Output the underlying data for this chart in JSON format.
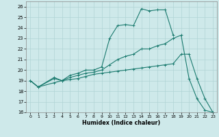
{
  "xlabel": "Humidex (Indice chaleur)",
  "xlim": [
    -0.5,
    23.5
  ],
  "ylim": [
    16,
    26.5
  ],
  "xticks": [
    0,
    1,
    2,
    3,
    4,
    5,
    6,
    7,
    8,
    9,
    10,
    11,
    12,
    13,
    14,
    15,
    16,
    17,
    18,
    19,
    20,
    21,
    22,
    23
  ],
  "yticks": [
    16,
    17,
    18,
    19,
    20,
    21,
    22,
    23,
    24,
    25,
    26
  ],
  "bg_color": "#cee9ea",
  "grid_color": "#b0d4d5",
  "line_color": "#1a7a6e",
  "line1": {
    "x": [
      0,
      1,
      3,
      4,
      5,
      6,
      7,
      8,
      9,
      10,
      11,
      12,
      13,
      14,
      15,
      16,
      17,
      18
    ],
    "y": [
      19.0,
      18.4,
      19.3,
      19.0,
      19.5,
      19.7,
      20.0,
      20.0,
      20.3,
      23.0,
      24.2,
      24.3,
      24.2,
      25.8,
      25.6,
      25.7,
      25.7,
      23.3
    ]
  },
  "line2": {
    "x": [
      0,
      1,
      3,
      4,
      5,
      6,
      7,
      8,
      9,
      10,
      11,
      12,
      13,
      14,
      15,
      16,
      17,
      18,
      19,
      20,
      21,
      22,
      23
    ],
    "y": [
      19.0,
      18.4,
      19.2,
      19.0,
      19.3,
      19.5,
      19.7,
      19.8,
      20.0,
      20.5,
      21.0,
      21.3,
      21.5,
      22.0,
      22.0,
      22.3,
      22.5,
      23.0,
      23.3,
      19.2,
      17.3,
      16.2,
      16.0
    ]
  },
  "line3": {
    "x": [
      0,
      1,
      3,
      4,
      5,
      6,
      7,
      8,
      9,
      10,
      11,
      12,
      13,
      14,
      15,
      16,
      17,
      18,
      19,
      20,
      21,
      22,
      23
    ],
    "y": [
      19.0,
      18.4,
      18.8,
      19.0,
      19.1,
      19.2,
      19.4,
      19.6,
      19.7,
      19.8,
      19.9,
      20.0,
      20.1,
      20.2,
      20.3,
      20.4,
      20.5,
      20.6,
      21.5,
      21.5,
      19.2,
      17.3,
      16.0
    ]
  }
}
